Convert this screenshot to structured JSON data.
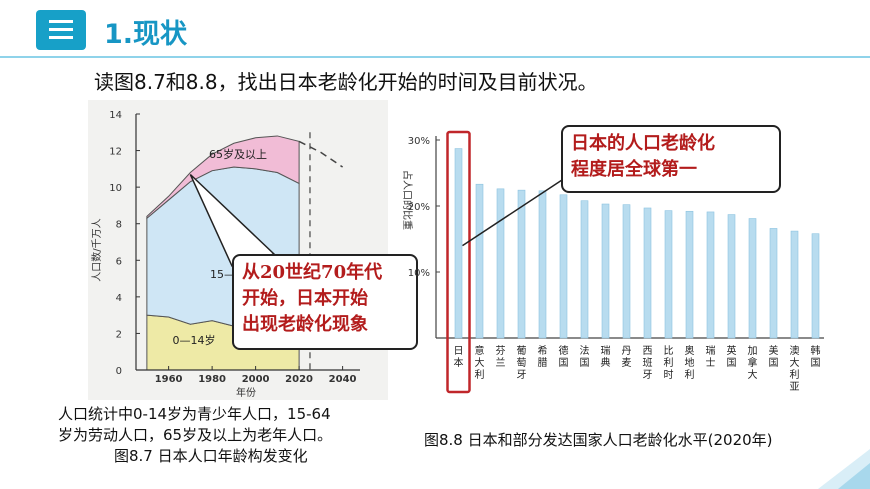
{
  "header": {
    "icon": "list-menu-icon",
    "title": "1.现状"
  },
  "question": "读图8.7和8.8，找出日本老龄化开始的时间及目前状况。",
  "left_figure": {
    "caption_lines": [
      "人口统计中0-14岁为青少年人口，15-64",
      "岁为劳动人口，65岁及以上为老年人口。",
      "图8.7 日本人口年龄构发变化"
    ],
    "callout_lines": [
      "从20世纪70年代",
      "开始，日本开始",
      "出现老龄化现象"
    ]
  },
  "right_figure": {
    "caption": "图8.8 日本和部分发达国家人口老龄化水平(2020年)",
    "callout_lines": [
      "日本的人口老龄化",
      "程度居全球第一"
    ]
  },
  "chart_data": [
    {
      "type": "area",
      "ylabel": "人口数/千万人",
      "xlabel": "年份",
      "ylim": [
        0,
        14
      ],
      "xlim": [
        1945,
        2048
      ],
      "yticks": [
        "0",
        "2",
        "4",
        "6",
        "8",
        "10",
        "12",
        "14"
      ],
      "xticks": [
        "1960",
        "1980",
        "2000",
        "2020",
        "2040"
      ],
      "series": [
        {
          "name": "0—14岁",
          "points": [
            [
              1950,
              3.0
            ],
            [
              1960,
              2.9
            ],
            [
              1970,
              2.5
            ],
            [
              1980,
              2.7
            ],
            [
              1990,
              2.4
            ],
            [
              2000,
              1.9
            ],
            [
              2010,
              1.7
            ],
            [
              2020,
              1.5
            ]
          ]
        },
        {
          "name": "15—",
          "points": [
            [
              1950,
              8.3
            ],
            [
              1960,
              9.3
            ],
            [
              1970,
              10.3
            ],
            [
              1980,
              10.9
            ],
            [
              1990,
              11.1
            ],
            [
              2000,
              11.0
            ],
            [
              2010,
              10.8
            ],
            [
              2020,
              10.2
            ]
          ]
        },
        {
          "name": "65岁及以上",
          "points": [
            [
              1950,
              8.4
            ],
            [
              1960,
              9.5
            ],
            [
              1970,
              10.8
            ],
            [
              1980,
              11.8
            ],
            [
              1990,
              12.4
            ],
            [
              2000,
              12.7
            ],
            [
              2010,
              12.8
            ],
            [
              2020,
              12.5
            ]
          ]
        }
      ],
      "projection": [
        [
          2020,
          12.5
        ],
        [
          2030,
          11.9
        ],
        [
          2040,
          11.1
        ]
      ]
    },
    {
      "type": "bar",
      "ylabel": "占人口的比重",
      "ylim": [
        0,
        30
      ],
      "yticks": [
        "30%",
        "20%",
        "10%"
      ],
      "categories": [
        "日本",
        "意大利",
        "芬兰",
        "葡萄牙",
        "希腊",
        "德国",
        "法国",
        "瑞典",
        "丹麦",
        "西班牙",
        "比利时",
        "奥地利",
        "瑞士",
        "英国",
        "加拿大",
        "美国",
        "澳大利亚",
        "韩国"
      ],
      "values": [
        28.7,
        23.3,
        22.6,
        22.4,
        22.3,
        21.7,
        20.8,
        20.3,
        20.2,
        19.7,
        19.3,
        19.2,
        19.1,
        18.7,
        18.1,
        16.6,
        16.2,
        15.8
      ],
      "highlight": "日本"
    }
  ],
  "colors": {
    "accent": "#1796c4",
    "callout_text": "#b31c1c",
    "pink": "#f1bcd6",
    "blue": "#cfe6f5",
    "yellow": "#eeeaa6",
    "bar": "#b8dcef",
    "highlight_box": "#c0262a"
  }
}
